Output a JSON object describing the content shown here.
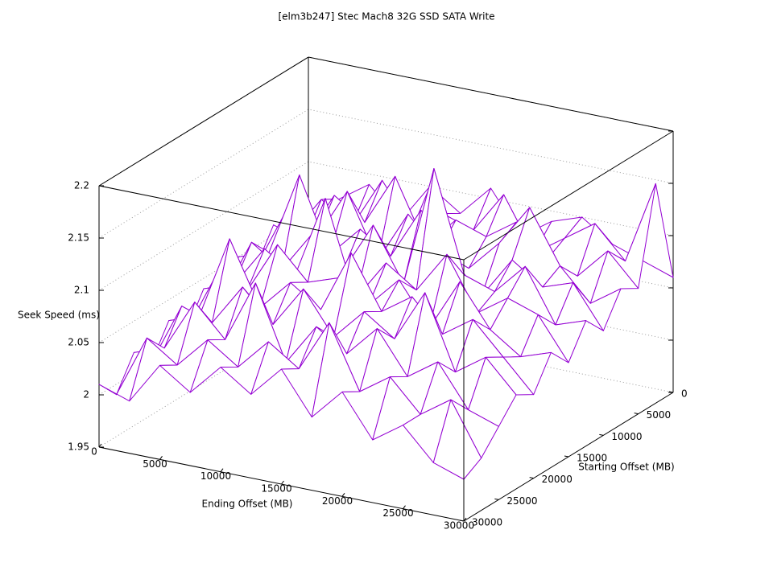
{
  "chart_data": {
    "type": "surface",
    "title": "[elm3b247] Stec Mach8 32G SSD SATA Write",
    "xlabel": "Ending Offset (MB)",
    "ylabel": "Starting Offset (MB)",
    "zlabel": "Seek Speed (ms)",
    "color": "#9400d3",
    "x": [
      0,
      2500,
      5000,
      7500,
      10000,
      12500,
      15000,
      17500,
      20000,
      22500,
      25000,
      27500,
      30000
    ],
    "y": [
      0,
      2500,
      5000,
      7500,
      10000,
      12500,
      15000,
      17500,
      20000,
      22500,
      25000,
      27500,
      30000
    ],
    "z": [
      [
        2.05,
        2.07,
        2.09,
        2.06,
        2.1,
        2.08,
        2.11,
        2.07,
        2.09,
        2.1,
        2.08,
        2.07,
        2.06
      ],
      [
        2.04,
        2.08,
        2.06,
        2.11,
        2.07,
        2.09,
        2.08,
        2.12,
        2.07,
        2.09,
        2.11,
        2.08,
        2.16
      ],
      [
        2.06,
        2.05,
        2.1,
        2.08,
        2.13,
        2.07,
        2.1,
        2.09,
        2.11,
        2.08,
        2.07,
        2.1,
        2.07
      ],
      [
        2.03,
        2.09,
        2.07,
        2.12,
        2.06,
        2.11,
        2.08,
        2.07,
        2.1,
        2.14,
        2.09,
        2.06,
        2.08
      ],
      [
        2.05,
        2.06,
        2.14,
        2.07,
        2.1,
        2.08,
        2.13,
        2.09,
        2.06,
        2.1,
        2.08,
        2.09,
        2.05
      ],
      [
        2.02,
        2.08,
        2.06,
        2.1,
        2.07,
        2.12,
        2.07,
        2.186,
        2.09,
        2.08,
        2.11,
        2.06,
        2.07
      ],
      [
        2.04,
        2.05,
        2.09,
        2.07,
        2.15,
        2.06,
        2.1,
        2.08,
        2.12,
        2.07,
        2.09,
        2.08,
        2.04
      ],
      [
        2.01,
        2.07,
        2.06,
        2.11,
        2.08,
        2.09,
        2.07,
        2.1,
        2.06,
        2.11,
        2.07,
        2.05,
        2.06
      ],
      [
        2.03,
        2.04,
        2.12,
        2.06,
        2.09,
        2.07,
        2.13,
        2.08,
        2.1,
        2.07,
        2.09,
        2.06,
        2.03
      ],
      [
        2.0,
        2.06,
        2.05,
        2.09,
        2.06,
        2.1,
        2.06,
        2.09,
        2.07,
        2.12,
        2.05,
        2.07,
        2.04
      ],
      [
        2.02,
        2.03,
        2.08,
        2.05,
        2.11,
        2.04,
        2.08,
        2.06,
        2.09,
        2.05,
        2.07,
        2.03,
        2.02
      ],
      [
        1.99,
        2.05,
        2.03,
        2.06,
        2.04,
        2.07,
        2.05,
        2.1,
        2.04,
        2.06,
        2.03,
        2.05,
        2.0
      ],
      [
        2.01,
        2.0,
        2.04,
        2.02,
        2.05,
        2.03,
        2.06,
        2.02,
        2.05,
        2.01,
        2.03,
        2.0,
        1.99
      ]
    ],
    "xlim": [
      0,
      30000
    ],
    "ylim": [
      0,
      30000
    ],
    "zlim": [
      1.95,
      2.2
    ],
    "xticks": [
      0,
      5000,
      10000,
      15000,
      20000,
      25000,
      30000
    ],
    "yticks": [
      0,
      5000,
      10000,
      15000,
      20000,
      25000,
      30000
    ],
    "zticks": [
      1.95,
      2,
      2.05,
      2.1,
      2.15,
      2.2
    ],
    "grid": true
  }
}
